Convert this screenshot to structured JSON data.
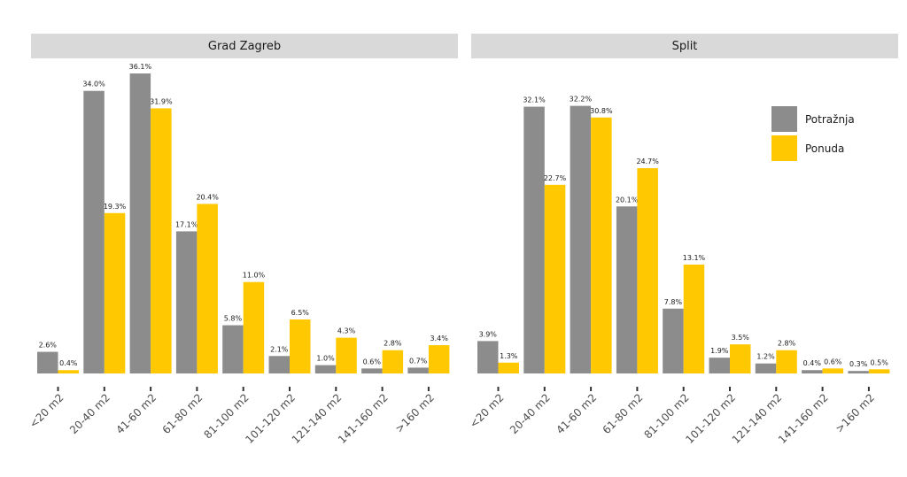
{
  "chart_data": {
    "type": "bar",
    "categories": [
      "<20 m2",
      "20-40 m2",
      "41-60 m2",
      "61-80 m2",
      "81-100 m2",
      "101-120 m2",
      "121-140 m2",
      "141-160 m2",
      ">160 m2"
    ],
    "panels": [
      {
        "title": "Grad Zagreb",
        "series": [
          {
            "name": "Potražnja",
            "values": [
              2.6,
              34.0,
              36.1,
              17.1,
              5.8,
              2.1,
              1.0,
              0.6,
              0.7
            ],
            "labels": [
              "2.6%",
              "34.0%",
              "36.1%",
              "17.1%",
              "5.8%",
              "2.1%",
              "1.0%",
              "0.6%",
              "0.7%"
            ]
          },
          {
            "name": "Ponuda",
            "values": [
              0.4,
              19.3,
              31.9,
              20.4,
              11.0,
              6.5,
              4.3,
              2.8,
              3.4
            ],
            "labels": [
              "0.4%",
              "19.3%",
              "31.9%",
              "20.4%",
              "11.0%",
              "6.5%",
              "4.3%",
              "2.8%",
              "3.4%"
            ]
          }
        ]
      },
      {
        "title": "Split",
        "series": [
          {
            "name": "Potražnja",
            "values": [
              3.9,
              32.1,
              32.2,
              20.1,
              7.8,
              1.9,
              1.2,
              0.4,
              0.3
            ],
            "labels": [
              "3.9%",
              "32.1%",
              "32.2%",
              "20.1%",
              "7.8%",
              "1.9%",
              "1.2%",
              "0.4%",
              "0.3%"
            ]
          },
          {
            "name": "Ponuda",
            "values": [
              1.3,
              22.7,
              30.8,
              24.7,
              13.1,
              3.5,
              2.8,
              0.6,
              0.5
            ],
            "labels": [
              "1.3%",
              "22.7%",
              "30.8%",
              "24.7%",
              "13.1%",
              "3.5%",
              "2.8%",
              "0.6%",
              "0.5%"
            ]
          }
        ]
      }
    ],
    "legend": [
      {
        "name": "Potražnja",
        "color": "#8c8c8c"
      },
      {
        "name": "Ponuda",
        "color": "#ffc800"
      }
    ],
    "ylim": [
      0,
      36.1
    ],
    "grid": false,
    "legend_position": "top-right"
  }
}
